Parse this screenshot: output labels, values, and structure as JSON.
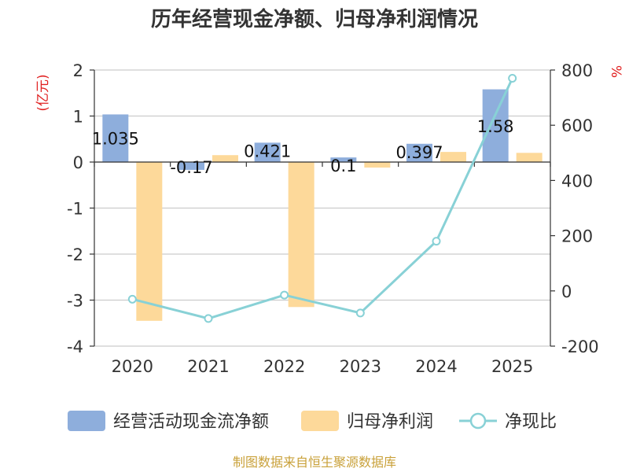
{
  "chart_data": {
    "type": "bar",
    "title": "历年经营现金净额、归母净利润情况",
    "left_unit": "(亿元)",
    "right_unit": "%",
    "categories": [
      "2020",
      "2021",
      "2022",
      "2023",
      "2024",
      "2025"
    ],
    "y_left": {
      "min": -4,
      "max": 2,
      "ticks": [
        "2",
        "1",
        "0",
        "-1",
        "-2",
        "-3",
        "-4"
      ]
    },
    "y_right": {
      "min": -200,
      "max": 800,
      "ticks": [
        "800",
        "600",
        "400",
        "200",
        "0",
        "-200"
      ]
    },
    "grid": true,
    "legend_position": "bottom",
    "series": [
      {
        "name": "经营活动现金流净额",
        "type": "bar",
        "axis": "left",
        "color": "#8eaedc",
        "values": [
          1.035,
          -0.17,
          0.421,
          0.1,
          0.397,
          1.58
        ],
        "labels": [
          "1.035",
          "-0.17",
          "0.421",
          "0.1",
          "0.397",
          "1.58"
        ]
      },
      {
        "name": "归母净利润",
        "type": "bar",
        "axis": "left",
        "color": "#fdd99a",
        "values": [
          -3.45,
          0.15,
          -3.15,
          -0.12,
          0.22,
          0.2
        ]
      },
      {
        "name": "净现比",
        "type": "line",
        "axis": "right",
        "color": "#88d1d6",
        "values": [
          -30,
          -100,
          -15,
          -80,
          180,
          770
        ]
      }
    ]
  },
  "footer": {
    "source": "制图数据来自恒生聚源数据库"
  }
}
